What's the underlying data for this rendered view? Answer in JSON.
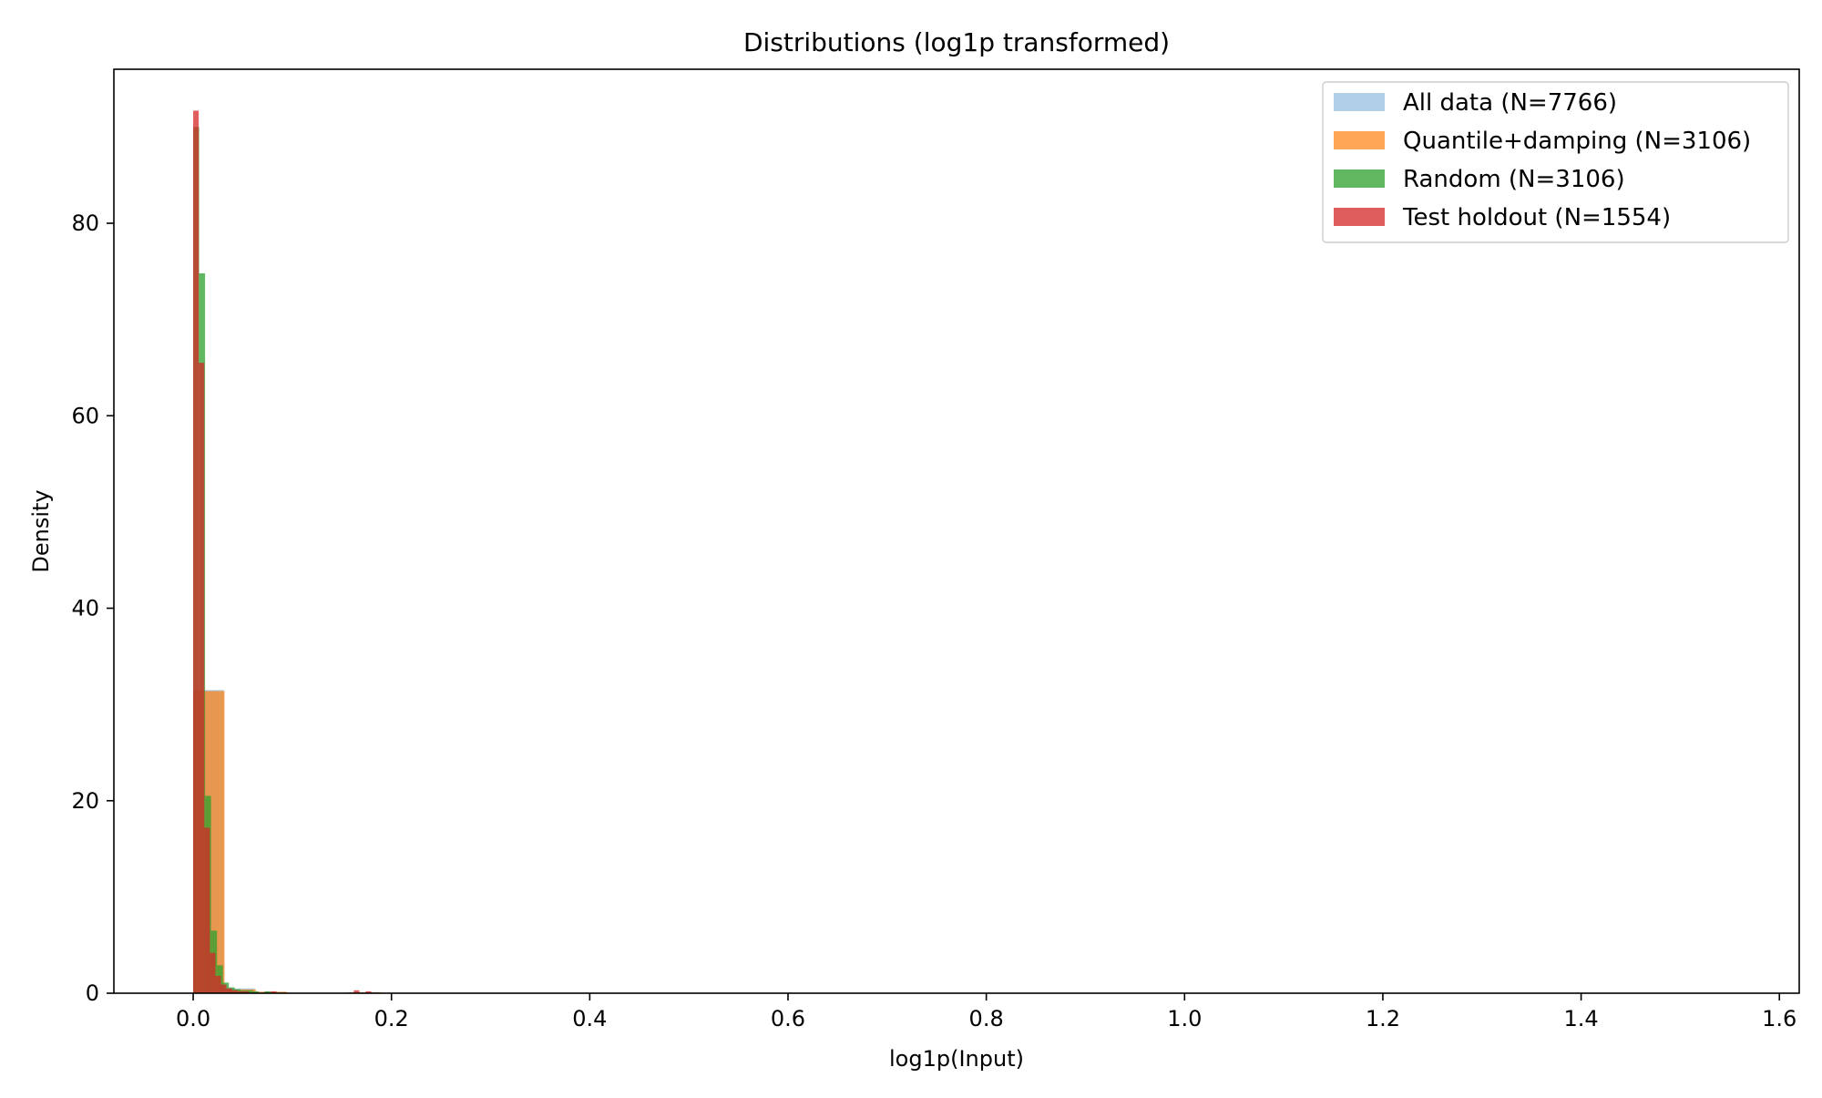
{
  "chart_data": {
    "type": "histogram",
    "title": "Distributions (log1p transformed)",
    "xlabel": "log1p(Input)",
    "ylabel": "Density",
    "xlim": [
      -0.08,
      1.62
    ],
    "ylim": [
      0,
      96
    ],
    "xticks": [
      0.0,
      0.2,
      0.4,
      0.6,
      0.8,
      1.0,
      1.2,
      1.4,
      1.6
    ],
    "xtick_labels": [
      "0.0",
      "0.2",
      "0.4",
      "0.6",
      "0.8",
      "1.0",
      "1.2",
      "1.4",
      "1.6"
    ],
    "yticks": [
      0,
      20,
      40,
      60,
      80
    ],
    "ytick_labels": [
      "0",
      "20",
      "40",
      "60",
      "80"
    ],
    "legend_position": "top-right",
    "grid": false,
    "series": [
      {
        "name": "All data (N=7766)",
        "color": "#aecfe6",
        "opacity": 1.0,
        "bins": [
          {
            "x0": 0.0,
            "x1": 0.031,
            "y": 31.5
          },
          {
            "x0": 0.031,
            "x1": 0.062,
            "y": 0.5
          },
          {
            "x0": 0.062,
            "x1": 0.093,
            "y": 0.15
          },
          {
            "x0": 0.155,
            "x1": 0.186,
            "y": 0.1
          },
          {
            "x0": 0.217,
            "x1": 0.248,
            "y": 0.05
          }
        ]
      },
      {
        "name": "Quantile+damping (N=3106)",
        "color": "#ff7f0e",
        "opacity": 0.7,
        "bins": [
          {
            "x0": 0.0,
            "x1": 0.0316,
            "y": 31.4
          },
          {
            "x0": 0.0316,
            "x1": 0.0632,
            "y": 0.4
          },
          {
            "x0": 0.0632,
            "x1": 0.0948,
            "y": 0.15
          },
          {
            "x0": 0.158,
            "x1": 0.19,
            "y": 0.1
          }
        ]
      },
      {
        "name": "Random (N=3106)",
        "color": "#2ca02c",
        "opacity": 0.75,
        "bins": [
          {
            "x0": 0.0,
            "x1": 0.006,
            "y": 90
          },
          {
            "x0": 0.006,
            "x1": 0.012,
            "y": 74.8
          },
          {
            "x0": 0.012,
            "x1": 0.018,
            "y": 20.5
          },
          {
            "x0": 0.018,
            "x1": 0.024,
            "y": 6.5
          },
          {
            "x0": 0.024,
            "x1": 0.03,
            "y": 2.9
          },
          {
            "x0": 0.03,
            "x1": 0.036,
            "y": 1.1
          },
          {
            "x0": 0.036,
            "x1": 0.042,
            "y": 0.6
          },
          {
            "x0": 0.042,
            "x1": 0.048,
            "y": 0.4
          },
          {
            "x0": 0.048,
            "x1": 0.054,
            "y": 0.3
          },
          {
            "x0": 0.054,
            "x1": 0.06,
            "y": 0.3
          },
          {
            "x0": 0.06,
            "x1": 0.066,
            "y": 0.2
          },
          {
            "x0": 0.072,
            "x1": 0.078,
            "y": 0.2
          }
        ]
      },
      {
        "name": "Test holdout (N=1554)",
        "color": "#d62728",
        "opacity": 0.75,
        "bins": [
          {
            "x0": 0.0,
            "x1": 0.0056,
            "y": 91.7
          },
          {
            "x0": 0.0056,
            "x1": 0.0112,
            "y": 65.5
          },
          {
            "x0": 0.0112,
            "x1": 0.0168,
            "y": 17.2
          },
          {
            "x0": 0.0168,
            "x1": 0.0224,
            "y": 4.2
          },
          {
            "x0": 0.0224,
            "x1": 0.028,
            "y": 1.8
          },
          {
            "x0": 0.028,
            "x1": 0.0336,
            "y": 0.9
          },
          {
            "x0": 0.0336,
            "x1": 0.0392,
            "y": 0.5
          },
          {
            "x0": 0.0392,
            "x1": 0.0448,
            "y": 0.3
          },
          {
            "x0": 0.0448,
            "x1": 0.0504,
            "y": 0.2
          },
          {
            "x0": 0.0504,
            "x1": 0.056,
            "y": 0.2
          },
          {
            "x0": 0.0784,
            "x1": 0.084,
            "y": 0.2
          },
          {
            "x0": 0.162,
            "x1": 0.1676,
            "y": 0.3
          },
          {
            "x0": 0.174,
            "x1": 0.1796,
            "y": 0.2
          }
        ]
      }
    ]
  }
}
